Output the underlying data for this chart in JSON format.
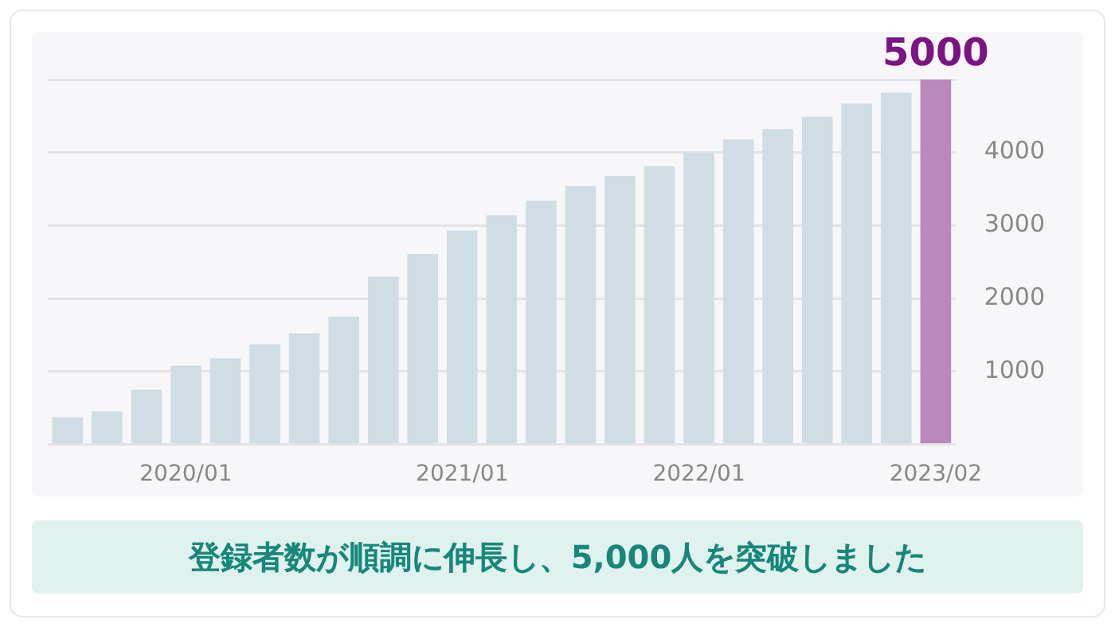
{
  "chart_data": {
    "type": "bar",
    "categories": [
      null,
      null,
      null,
      "2020/01",
      null,
      null,
      null,
      null,
      null,
      null,
      "2021/01",
      null,
      null,
      null,
      null,
      null,
      "2022/01",
      null,
      null,
      null,
      null,
      null,
      "2023/02"
    ],
    "values": [
      370,
      450,
      750,
      1080,
      1180,
      1370,
      1520,
      1750,
      2300,
      2610,
      2930,
      3140,
      3340,
      3540,
      3680,
      3810,
      4000,
      4180,
      4320,
      4490,
      4670,
      4820,
      5000
    ],
    "value_labels": [
      null,
      null,
      null,
      null,
      null,
      null,
      null,
      null,
      null,
      null,
      null,
      null,
      null,
      null,
      null,
      null,
      null,
      null,
      null,
      null,
      null,
      null,
      "5000"
    ],
    "colors": [
      "#cfdde4",
      "#cfdde4",
      "#cfdde4",
      "#cfdde4",
      "#cfdde4",
      "#cfdde4",
      "#cfdde4",
      "#cfdde4",
      "#cfdde4",
      "#cfdde4",
      "#cfdde4",
      "#cfdde4",
      "#cfdde4",
      "#cfdde4",
      "#cfdde4",
      "#cfdde4",
      "#cfdde4",
      "#cfdde4",
      "#cfdde4",
      "#cfdde4",
      "#cfdde4",
      "#cfdde4",
      "#bb88bb"
    ],
    "ylim": [
      0,
      5000
    ],
    "yticks": [
      {
        "value": 0,
        "label": null
      },
      1000,
      2000,
      3000,
      4000,
      {
        "value": 5000,
        "label": null
      }
    ],
    "grid": "y",
    "annotations": [
      "登録者数が順調に伸長し、5,000人を突破しました"
    ]
  }
}
